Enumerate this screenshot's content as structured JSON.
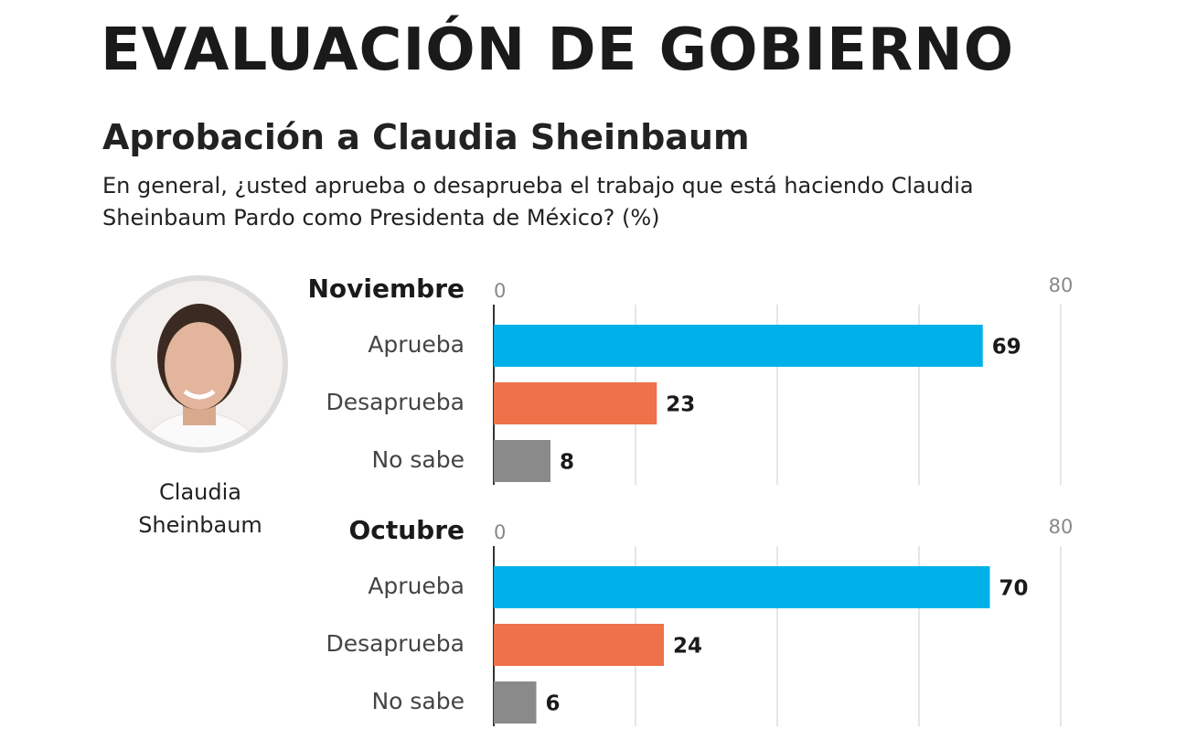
{
  "header": {
    "title": "EVALUACIÓN DE GOBIERNO",
    "subtitle": "Aprobación a Claudia Sheinbaum",
    "question": "En general, ¿usted aprueba o desaprueba el trabajo que está haciendo Claudia Sheinbaum Pardo como Presidenta de México? (%)"
  },
  "portrait": {
    "caption": "Claudia Sheinbaum"
  },
  "chart_data": [
    {
      "type": "bar",
      "orientation": "horizontal",
      "title": "Noviembre",
      "categories": [
        "Aprueba",
        "Desaprueba",
        "No sabe"
      ],
      "values": [
        69,
        23,
        8
      ],
      "colors": [
        "#00b0e8",
        "#ef7149",
        "#8a8a8a"
      ],
      "xlim": [
        0,
        80
      ],
      "xticks": [
        0,
        80
      ],
      "gridlines": [
        0,
        20,
        40,
        60,
        80
      ]
    },
    {
      "type": "bar",
      "orientation": "horizontal",
      "title": "Octubre",
      "categories": [
        "Aprueba",
        "Desaprueba",
        "No sabe"
      ],
      "values": [
        70,
        24,
        6
      ],
      "colors": [
        "#00b0e8",
        "#ef7149",
        "#8a8a8a"
      ],
      "xlim": [
        0,
        80
      ],
      "xticks": [
        0,
        80
      ],
      "gridlines": [
        0,
        20,
        40,
        60,
        80
      ]
    }
  ]
}
